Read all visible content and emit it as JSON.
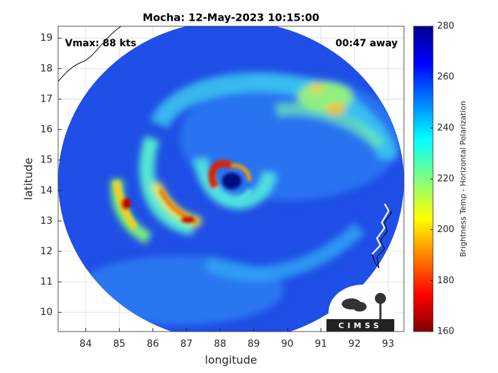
{
  "chart_data": {
    "type": "map",
    "title": "Mocha: 12-May-2023 10:15:00",
    "xlabel": "longitude",
    "ylabel": "latitude",
    "xlim": [
      83.18,
      93.47
    ],
    "ylim": [
      9.37,
      19.39
    ],
    "xticks": [
      84,
      85,
      86,
      87,
      88,
      89,
      90,
      91,
      92,
      93
    ],
    "yticks": [
      10,
      11,
      12,
      13,
      14,
      15,
      16,
      17,
      18,
      19
    ],
    "grid": true,
    "annotations": [
      "Vmax: 88 kts",
      "00:47 away"
    ],
    "colorbar": {
      "label": "Brightness Temp - Horizontal Polarization",
      "lim": [
        160,
        280
      ],
      "ticks": [
        160,
        180,
        200,
        220,
        240,
        260,
        280
      ],
      "colormap": "jet"
    },
    "logo": "CIMSS"
  }
}
